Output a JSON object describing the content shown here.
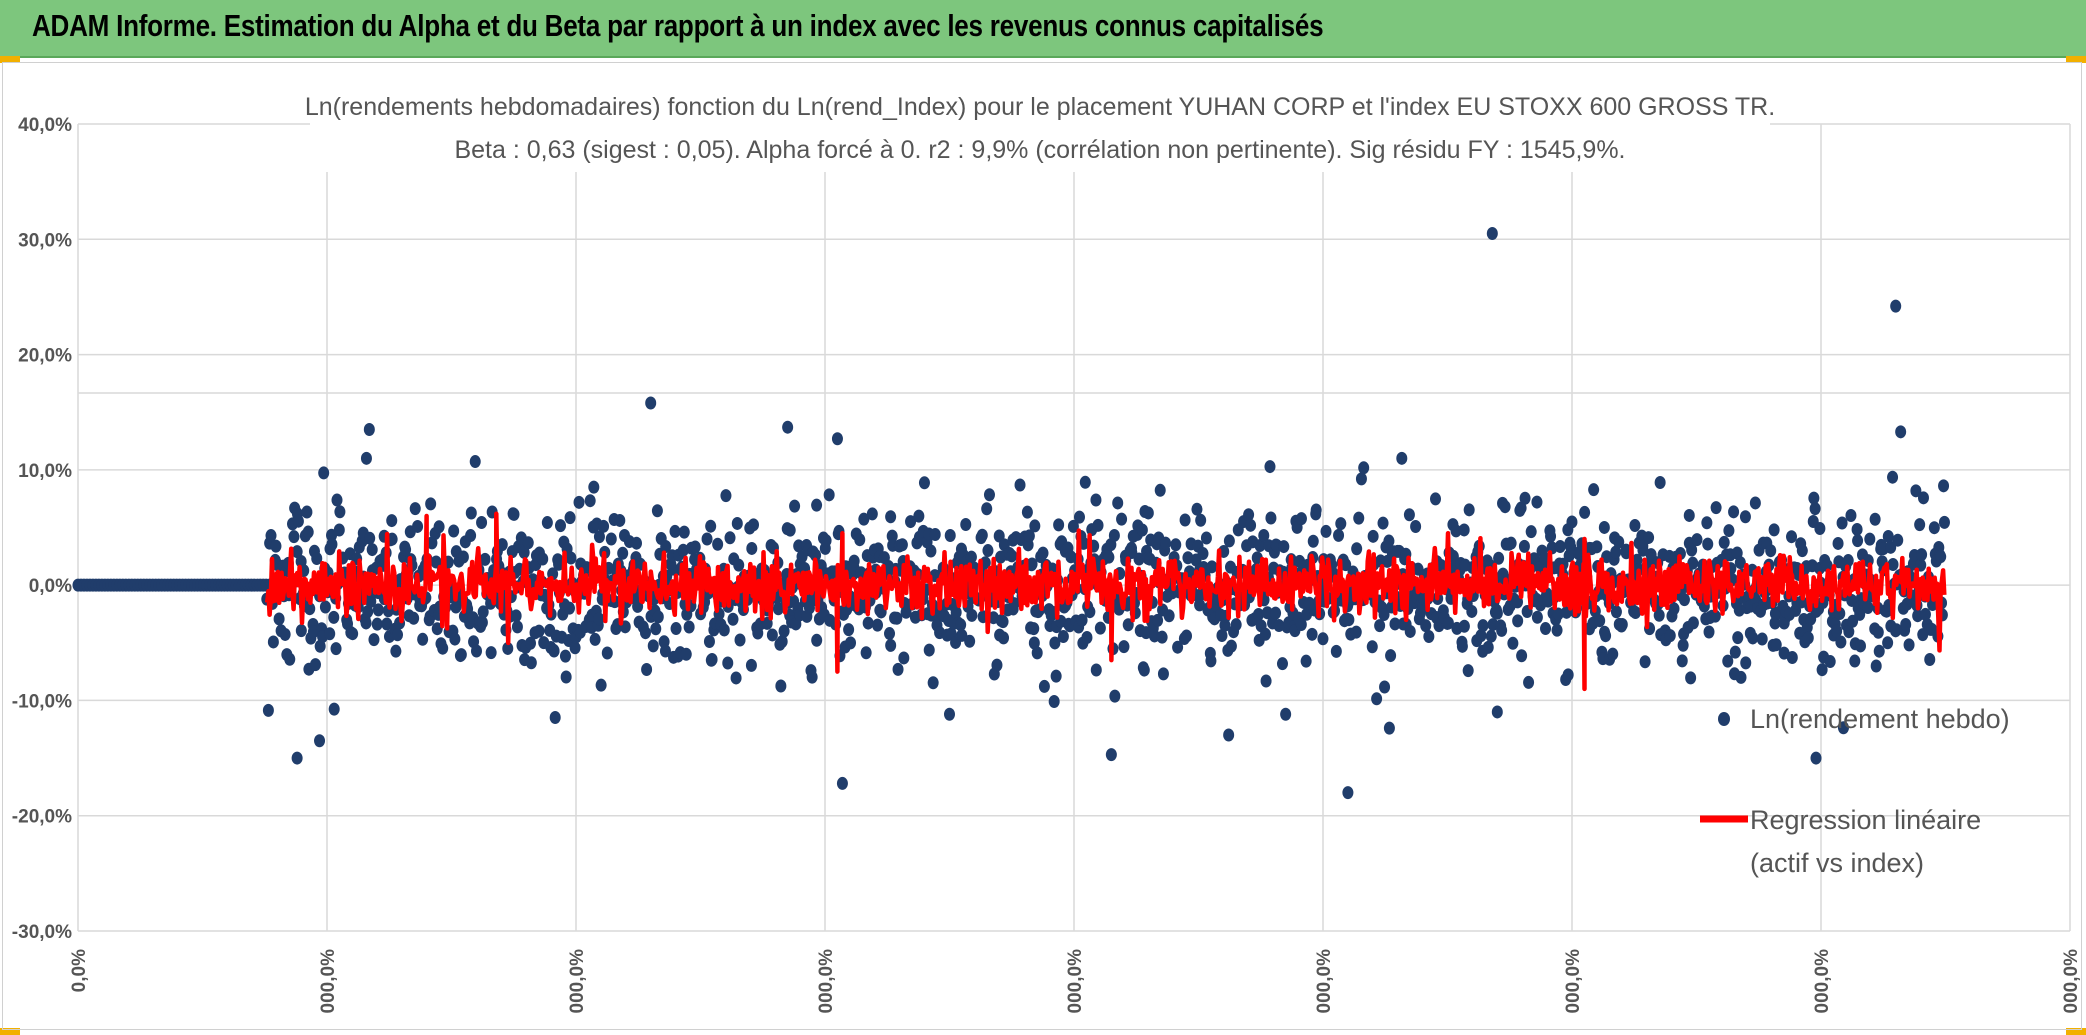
{
  "banner": {
    "title": "ADAM Informe. Estimation du Alpha et du Beta par rapport à un index avec les revenus connus capitalisés"
  },
  "colors": {
    "banner_bg": "#7dc67d",
    "corner_accent": "#f2b000",
    "scatter_series": "#203d6b",
    "regression_series": "#ff0000",
    "gridline": "#d9d9d9",
    "text": "#555555"
  },
  "chart_data": {
    "type": "scatter",
    "title_line1": "Ln(rendements hebdomadaires) fonction du Ln(rend_Index) pour le placement YUHAN CORP et l'index EU STOXX 600 GROSS TR.",
    "title_line2": "Beta : 0,63 (sigest : 0,05). Alpha forcé à 0. r2 : 9,9% (corrélation non pertinente). Sig résidu FY : 1545,9%.",
    "ylim": [
      -0.3,
      0.4
    ],
    "y_ticks": [
      {
        "value": 0.4,
        "label": "40,0%"
      },
      {
        "value": 0.3,
        "label": "30,0%"
      },
      {
        "value": 0.2,
        "label": "20,0%"
      },
      {
        "value": 0.1,
        "label": "10,0%"
      },
      {
        "value": 0.0,
        "label": "0,0%"
      },
      {
        "value": -0.1,
        "label": "-10,0%"
      },
      {
        "value": -0.2,
        "label": "-20,0%"
      },
      {
        "value": -0.3,
        "label": "-30,0%"
      }
    ],
    "xlim": [
      0,
      8
    ],
    "x_ticks": [
      {
        "value": 0,
        "label": "0,0%"
      },
      {
        "value": 1,
        "label": "000,0%"
      },
      {
        "value": 2,
        "label": "000,0%"
      },
      {
        "value": 3,
        "label": "000,0%"
      },
      {
        "value": 4,
        "label": "000,0%"
      },
      {
        "value": 5,
        "label": "000,0%"
      },
      {
        "value": 6,
        "label": "000,0%"
      },
      {
        "value": 7,
        "label": "000,0%"
      },
      {
        "value": 8,
        "label": "000,0%"
      }
    ],
    "grid": true,
    "legend_position": "right",
    "series": [
      {
        "name": "Ln(rendement hebdo)",
        "kind": "scatter",
        "zero_run": {
          "x_from": 0.0,
          "x_to": 0.76,
          "y": 0.0
        },
        "active_range": [
          0.76,
          7.5
        ],
        "notable_points": [
          {
            "x": 5.68,
            "y": 0.305
          },
          {
            "x": 7.3,
            "y": 0.242
          },
          {
            "x": 2.3,
            "y": 0.158
          },
          {
            "x": 1.17,
            "y": 0.135
          },
          {
            "x": 2.85,
            "y": 0.137
          },
          {
            "x": 3.05,
            "y": 0.127
          },
          {
            "x": 7.32,
            "y": 0.133
          },
          {
            "x": 5.1,
            "y": -0.18
          },
          {
            "x": 3.07,
            "y": -0.172
          },
          {
            "x": 0.88,
            "y": -0.15
          },
          {
            "x": 6.98,
            "y": -0.15
          },
          {
            "x": 4.15,
            "y": -0.147
          },
          {
            "x": 0.97,
            "y": -0.135
          },
          {
            "x": 3.5,
            "y": -0.112
          },
          {
            "x": 4.85,
            "y": -0.112
          },
          {
            "x": 5.7,
            "y": -0.11
          }
        ]
      },
      {
        "name": "Regression linéaire (actif vs index)",
        "legend_lines": [
          "Regression linéaire",
          "(actif vs index)"
        ],
        "kind": "line",
        "slope_beta": 0.63,
        "notable_points": [
          {
            "x": 6.05,
            "y": -0.09
          },
          {
            "x": 3.05,
            "y": -0.075
          },
          {
            "x": 4.15,
            "y": -0.065
          },
          {
            "x": 1.4,
            "y": 0.06
          },
          {
            "x": 1.68,
            "y": 0.062
          },
          {
            "x": 6.05,
            "y": 0.04
          },
          {
            "x": 3.07,
            "y": 0.045
          }
        ]
      }
    ]
  }
}
